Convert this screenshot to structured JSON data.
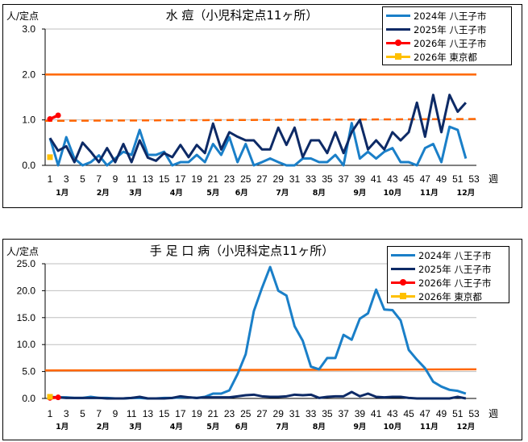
{
  "chart_data": [
    {
      "type": "line",
      "title": "水 痘（小児科定点11ヶ所）",
      "ylabel": "人/定点",
      "xlabel": "週",
      "ylim": [
        0,
        3.0
      ],
      "yticks": [
        "0.0",
        "1.0",
        "2.0",
        "3.0"
      ],
      "ytick_values": [
        0,
        1,
        2,
        3
      ],
      "xticks": [
        1,
        3,
        5,
        7,
        9,
        11,
        13,
        15,
        17,
        19,
        21,
        23,
        25,
        27,
        29,
        31,
        33,
        35,
        37,
        39,
        41,
        43,
        45,
        47,
        49,
        51,
        53
      ],
      "months": [
        {
          "label": "1月",
          "week": 2.5
        },
        {
          "label": "2月",
          "week": 7.5
        },
        {
          "label": "3月",
          "week": 11.5
        },
        {
          "label": "4月",
          "week": 16.5
        },
        {
          "label": "5月",
          "week": 21
        },
        {
          "label": "6月",
          "week": 24.5
        },
        {
          "label": "7月",
          "week": 29.5
        },
        {
          "label": "8月",
          "week": 34
        },
        {
          "label": "9月",
          "week": 39
        },
        {
          "label": "10月",
          "week": 43
        },
        {
          "label": "11月",
          "week": 47.5
        },
        {
          "label": "12月",
          "week": 52
        }
      ],
      "grid": true,
      "legend_position": "top-right",
      "reference_lines": [
        {
          "style": "solid",
          "color": "#ff6600",
          "from": 2.0,
          "to": 2.0
        },
        {
          "style": "dashed",
          "color": "#ff6600",
          "from": 0.98,
          "to": 1.02
        }
      ],
      "series": [
        {
          "name": "2024年 八王子市",
          "color": "#1a7fc8",
          "marker": "none",
          "start_week": 1,
          "values": [
            0.6,
            0.0,
            0.62,
            0.15,
            0.0,
            0.07,
            0.22,
            0.0,
            0.15,
            0.3,
            0.23,
            0.78,
            0.23,
            0.23,
            0.3,
            0.0,
            0.07,
            0.07,
            0.23,
            0.07,
            0.47,
            0.23,
            0.62,
            0.07,
            0.47,
            0.0,
            0.07,
            0.15,
            0.07,
            0.0,
            0.0,
            0.15,
            0.15,
            0.07,
            0.07,
            0.23,
            0.0,
            0.93,
            0.15,
            0.3,
            0.15,
            0.3,
            0.38,
            0.07,
            0.07,
            0.0,
            0.38,
            0.47,
            0.07,
            0.85,
            0.78,
            0.15
          ]
        },
        {
          "name": "2025年 八王子市",
          "color": "#0d2a66",
          "marker": "none",
          "start_week": 1,
          "values": [
            0.6,
            0.32,
            0.42,
            0.07,
            0.5,
            0.3,
            0.07,
            0.38,
            0.07,
            0.47,
            0.07,
            0.55,
            0.17,
            0.1,
            0.27,
            0.18,
            0.45,
            0.18,
            0.45,
            0.27,
            0.92,
            0.35,
            0.73,
            0.63,
            0.55,
            0.55,
            0.35,
            0.35,
            0.83,
            0.45,
            0.83,
            0.18,
            0.55,
            0.55,
            0.27,
            0.73,
            0.27,
            0.73,
            1.0,
            0.35,
            0.55,
            0.35,
            0.73,
            0.55,
            0.73,
            1.38,
            0.63,
            1.55,
            0.73,
            1.55,
            1.18,
            1.38
          ]
        },
        {
          "name": "2026年 八王子市",
          "color": "#ff0000",
          "marker": "circle",
          "start_week": 1,
          "values": [
            1.02,
            1.1
          ]
        },
        {
          "name": "2026年 東京都",
          "color": "#ffc000",
          "marker": "square",
          "start_week": 1,
          "values": [
            0.18
          ]
        }
      ]
    },
    {
      "type": "line",
      "title": "手 足 口 病（小児科定点11ヶ所）",
      "ylabel": "人/定点",
      "xlabel": "週",
      "ylim": [
        0,
        25.0
      ],
      "yticks": [
        "0.0",
        "5.0",
        "10.0",
        "15.0",
        "20.0",
        "25.0"
      ],
      "ytick_values": [
        0,
        5,
        10,
        15,
        20,
        25
      ],
      "xticks": [
        1,
        3,
        5,
        7,
        9,
        11,
        13,
        15,
        17,
        19,
        21,
        23,
        25,
        27,
        29,
        31,
        33,
        35,
        37,
        39,
        41,
        43,
        45,
        47,
        49,
        51,
        53
      ],
      "months": [
        {
          "label": "1月",
          "week": 2.5
        },
        {
          "label": "2月",
          "week": 7.5
        },
        {
          "label": "3月",
          "week": 11.5
        },
        {
          "label": "4月",
          "week": 16.5
        },
        {
          "label": "5月",
          "week": 21
        },
        {
          "label": "6月",
          "week": 24.5
        },
        {
          "label": "7月",
          "week": 29.5
        },
        {
          "label": "8月",
          "week": 34
        },
        {
          "label": "9月",
          "week": 39
        },
        {
          "label": "10月",
          "week": 43
        },
        {
          "label": "11月",
          "week": 47.5
        },
        {
          "label": "12月",
          "week": 52
        }
      ],
      "grid": true,
      "legend_position": "top-right",
      "reference_lines": [
        {
          "style": "solid",
          "color": "#ff6600",
          "from": 5.2,
          "to": 5.4
        }
      ],
      "series": [
        {
          "name": "2024年 八王子市",
          "color": "#1a7fc8",
          "marker": "none",
          "start_week": 1,
          "values": [
            0.3,
            0.2,
            0.2,
            0.1,
            0.1,
            0.3,
            0.1,
            0.1,
            0.0,
            0.0,
            0.1,
            0.1,
            0.0,
            0.0,
            0.1,
            0.1,
            0.2,
            0.2,
            0.1,
            0.3,
            0.9,
            0.9,
            1.5,
            4.5,
            8.2,
            16.2,
            20.5,
            24.4,
            20.0,
            19.1,
            13.4,
            10.7,
            5.9,
            5.4,
            7.5,
            7.5,
            11.8,
            10.9,
            14.8,
            15.8,
            20.2,
            16.5,
            16.4,
            14.5,
            9.0,
            7.2,
            5.6,
            3.1,
            2.2,
            1.6,
            1.4,
            0.9
          ]
        },
        {
          "name": "2025年 八王子市",
          "color": "#0d2a66",
          "marker": "none",
          "start_week": 1,
          "values": [
            0.2,
            0.2,
            0.1,
            0.1,
            0.1,
            0.1,
            0.1,
            0.0,
            0.0,
            0.0,
            0.1,
            0.3,
            0.0,
            0.0,
            0.0,
            0.1,
            0.4,
            0.2,
            0.1,
            0.2,
            0.2,
            0.2,
            0.2,
            0.4,
            0.6,
            0.7,
            0.4,
            0.3,
            0.3,
            0.4,
            0.7,
            0.6,
            0.7,
            0.1,
            0.3,
            0.4,
            0.4,
            1.2,
            0.4,
            0.9,
            0.3,
            0.2,
            0.3,
            0.3,
            0.1,
            0.0,
            0.0,
            0.0,
            0.0,
            0.0,
            0.3,
            0.0
          ]
        },
        {
          "name": "2026年 八王子市",
          "color": "#ff0000",
          "marker": "circle",
          "start_week": 1,
          "values": [
            0.1,
            0.2
          ]
        },
        {
          "name": "2026年 東京都",
          "color": "#ffc000",
          "marker": "square",
          "start_week": 1,
          "values": [
            0.3
          ]
        }
      ]
    }
  ]
}
